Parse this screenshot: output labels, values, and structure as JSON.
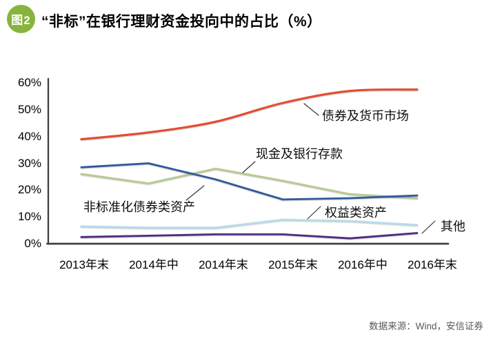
{
  "figure_badge": "图2",
  "title": "“非标”在银行理财资金投向中的占比（%）",
  "source": "数据来源：Wind，安信证券",
  "colors": {
    "badge_green": "#87b43d",
    "axis": "#3f3f3f",
    "annotation_line": "#333333",
    "source_text": "#595959"
  },
  "chart_data": {
    "type": "line",
    "categories": [
      "2013年末",
      "2014年中",
      "2014年末",
      "2015年末",
      "2016年中",
      "2016年末"
    ],
    "series": [
      {
        "name": "债券及货币市场",
        "color": "#e54b31",
        "smooth": true,
        "values": [
          39,
          41.5,
          45.5,
          52.5,
          57,
          57.5
        ]
      },
      {
        "name": "非标准化债券类资产",
        "color": "#30599b",
        "smooth": false,
        "values": [
          28.5,
          30,
          24,
          16.5,
          17,
          18
        ]
      },
      {
        "name": "现金及银行存款",
        "color": "#b6cb8f",
        "smooth": false,
        "values": [
          26,
          22.5,
          28,
          23.5,
          18.5,
          17
        ]
      },
      {
        "name": "权益类资产",
        "color": "#b8dcec",
        "smooth": false,
        "values": [
          6.5,
          6,
          6,
          9,
          8.5,
          7
        ]
      },
      {
        "name": "其他",
        "color": "#4b2d7f",
        "smooth": false,
        "values": [
          2.5,
          3,
          3.5,
          3.5,
          2,
          4
        ]
      }
    ],
    "ylim": [
      0,
      60
    ],
    "yticks": [
      "0%",
      "10%",
      "20%",
      "30%",
      "40%",
      "50%",
      "60%"
    ],
    "grid": false,
    "legend": "inline-annotations"
  }
}
